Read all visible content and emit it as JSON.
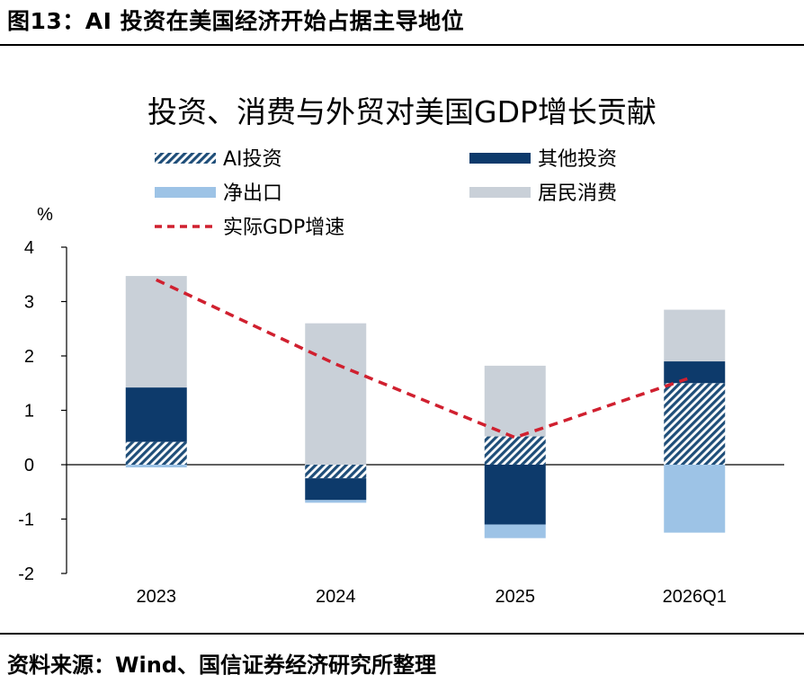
{
  "figure": {
    "title": "图13：AI 投资在美国经济开始占据主导地位",
    "source": "资料来源：Wind、国信证券经济研究所整理"
  },
  "chart_data": {
    "type": "bar",
    "title": "投资、消费与外贸对美国GDP增长贡献",
    "ylabel": "%",
    "ylim": [
      -2,
      4
    ],
    "yticks": [
      4,
      3,
      2,
      1,
      0,
      -1,
      -2
    ],
    "categories": [
      "2023",
      "2024",
      "2025",
      "2026Q1"
    ],
    "stacked": true,
    "series": [
      {
        "name": "AI投资",
        "color": "#1f4e79",
        "pattern": "diagonal-hatch",
        "values": [
          0.42,
          -0.25,
          0.52,
          1.5
        ]
      },
      {
        "name": "其他投资",
        "color": "#0d3a6b",
        "values": [
          1.0,
          -0.4,
          -1.1,
          0.4
        ]
      },
      {
        "name": "净出口",
        "color": "#9dc3e6",
        "values": [
          -0.05,
          -0.05,
          -0.25,
          -1.25
        ]
      },
      {
        "name": "居民消费",
        "color": "#c9d0d8",
        "values": [
          2.05,
          2.6,
          1.3,
          0.95
        ]
      }
    ],
    "line": {
      "name": "实际GDP增速",
      "color": "#d0202f",
      "style": "dashed",
      "values": [
        3.4,
        1.85,
        0.5,
        1.58
      ]
    },
    "grid": false,
    "legend_position": "top"
  }
}
